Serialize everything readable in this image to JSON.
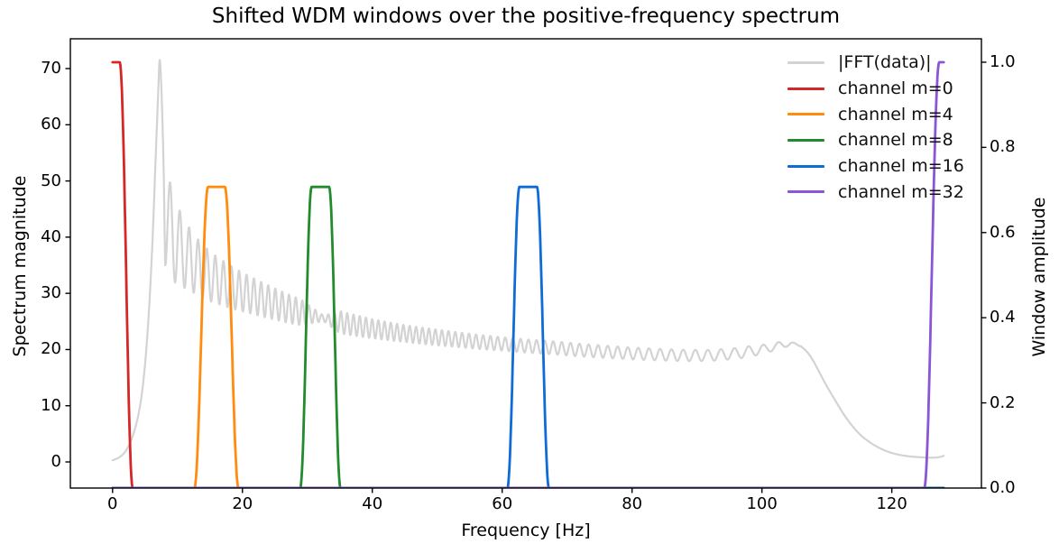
{
  "chart_data": {
    "type": "line",
    "title": "Shifted WDM windows over the positive-frequency spectrum",
    "xlabel": "Frequency [Hz]",
    "ylabel_left": "Spectrum magnitude",
    "ylabel_right": "Window amplitude",
    "xlim": [
      -6.5,
      133.8
    ],
    "ylim_left": [
      -4.65,
      75.3
    ],
    "ylim_right": [
      0.0,
      1.055
    ],
    "xticks": [
      0,
      20,
      40,
      60,
      80,
      100,
      120
    ],
    "yticks_left": [
      0,
      10,
      20,
      30,
      40,
      50,
      60,
      70
    ],
    "yticks_right": [
      "0.0",
      "0.2",
      "0.4",
      "0.6",
      "0.8",
      "1.0"
    ],
    "grid": false,
    "legend": {
      "position": "upper right",
      "frame": false,
      "entries": [
        {
          "label": "|FFT(data)|",
          "color": "#d3d3d3"
        },
        {
          "label": "channel m=0",
          "color": "#d62728"
        },
        {
          "label": "channel m=4",
          "color": "#ff8c0e"
        },
        {
          "label": "channel m=8",
          "color": "#228b2e"
        },
        {
          "label": "channel m=16",
          "color": "#0f6bd7"
        },
        {
          "label": "channel m=32",
          "color": "#8a55d6"
        }
      ]
    },
    "series": {
      "fft": {
        "name": "|FFT(data)|",
        "color": "#d3d3d3",
        "axis": "left",
        "peak": {
          "f": 7.25,
          "value": 71.5
        },
        "main_lobe_points": [
          [
            0,
            0.3
          ],
          [
            1,
            0.8
          ],
          [
            2,
            1.9
          ],
          [
            3,
            4.3
          ],
          [
            4,
            8.5
          ],
          [
            4.8,
            15
          ],
          [
            5.5,
            25
          ],
          [
            6.1,
            38
          ],
          [
            6.6,
            53
          ],
          [
            7.0,
            65
          ],
          [
            7.25,
            71.5
          ],
          [
            7.5,
            67
          ],
          [
            7.7,
            60
          ],
          [
            7.9,
            50
          ],
          [
            8.0,
            42
          ],
          [
            8.1,
            35.2
          ]
        ],
        "ripple_region": {
          "f_start": 8.1,
          "f_end": 106,
          "start_phase_deg": -90,
          "trend_points": [
            [
              8.1,
              44
            ],
            [
              9.5,
              39.5
            ],
            [
              11,
              37
            ],
            [
              13,
              34.8
            ],
            [
              15,
              33
            ],
            [
              17,
              31.8
            ],
            [
              19,
              30.7
            ],
            [
              21,
              29.8
            ],
            [
              24,
              28.5
            ],
            [
              27,
              27.3
            ],
            [
              30,
              26.3
            ],
            [
              33,
              25.4
            ],
            [
              36,
              24.6
            ],
            [
              40,
              23.7
            ],
            [
              44,
              23.0
            ],
            [
              48,
              22.4
            ],
            [
              52,
              21.9
            ],
            [
              56,
              21.4
            ],
            [
              60,
              21.0
            ],
            [
              64,
              20.6
            ],
            [
              68,
              20.3
            ],
            [
              72,
              19.9
            ],
            [
              76,
              19.6
            ],
            [
              80,
              19.3
            ],
            [
              84,
              19.1
            ],
            [
              88,
              18.95
            ],
            [
              92,
              18.95
            ],
            [
              96,
              19.3
            ],
            [
              100,
              20.0
            ],
            [
              103,
              20.8
            ],
            [
              104.5,
              21.1
            ],
            [
              106,
              20.6
            ]
          ],
          "amp_points": [
            [
              8.1,
              9
            ],
            [
              9.5,
              7.5
            ],
            [
              11,
              6
            ],
            [
              13,
              5
            ],
            [
              15,
              4.4
            ],
            [
              18,
              3.8
            ],
            [
              21,
              3.3
            ],
            [
              25,
              2.8
            ],
            [
              29,
              2.3
            ],
            [
              32.5,
              0.5
            ],
            [
              35,
              2.0
            ],
            [
              40,
              1.7
            ],
            [
              45,
              1.5
            ],
            [
              50,
              1.4
            ],
            [
              55,
              1.3
            ],
            [
              60,
              1.2
            ],
            [
              70,
              1.15
            ],
            [
              80,
              1.05
            ],
            [
              90,
              1.0
            ],
            [
              98,
              0.95
            ],
            [
              103,
              0.6
            ],
            [
              106,
              0.05
            ]
          ],
          "period_points": [
            [
              8.1,
              1.55
            ],
            [
              12,
              1.4
            ],
            [
              20,
              1.15
            ],
            [
              30,
              1.0
            ],
            [
              40,
              0.95
            ],
            [
              50,
              1.0
            ],
            [
              60,
              1.15
            ],
            [
              70,
              1.35
            ],
            [
              80,
              1.6
            ],
            [
              90,
              1.9
            ],
            [
              100,
              2.3
            ],
            [
              106,
              2.5
            ]
          ]
        },
        "tail_points": [
          [
            106,
            20.6
          ],
          [
            107,
            19.5
          ],
          [
            108,
            17.8
          ],
          [
            109.5,
            14.5
          ],
          [
            111,
            11.5
          ],
          [
            113,
            7.8
          ],
          [
            115,
            5.0
          ],
          [
            117,
            3.2
          ],
          [
            119,
            2.0
          ],
          [
            121,
            1.3
          ],
          [
            123,
            0.95
          ],
          [
            125,
            0.8
          ],
          [
            126.5,
            0.75
          ],
          [
            127.5,
            0.9
          ],
          [
            128,
            1.1
          ]
        ]
      },
      "windows": [
        {
          "name": "channel m=0",
          "color": "#d62728",
          "axis": "right",
          "center": 0,
          "flat_halfwidth": 1.1,
          "base_halfwidth": 3.1,
          "peak": 1.0,
          "f_range": [
            0,
            128
          ]
        },
        {
          "name": "channel m=4",
          "color": "#ff8c0e",
          "axis": "right",
          "center": 16,
          "flat_halfwidth": 1.3,
          "base_halfwidth": 3.4,
          "peak": 0.7071,
          "f_range": [
            0,
            128
          ]
        },
        {
          "name": "channel m=8",
          "color": "#228b2e",
          "axis": "right",
          "center": 32,
          "flat_halfwidth": 1.35,
          "base_halfwidth": 3.1,
          "peak": 0.7071,
          "f_range": [
            0,
            128
          ]
        },
        {
          "name": "channel m=16",
          "color": "#0f6bd7",
          "axis": "right",
          "center": 64,
          "flat_halfwidth": 1.35,
          "base_halfwidth": 3.2,
          "peak": 0.7071,
          "f_range": [
            0,
            128
          ]
        },
        {
          "name": "channel m=32",
          "color": "#8a55d6",
          "axis": "right",
          "center": 128,
          "flat_halfwidth": 0.7,
          "base_halfwidth": 3.0,
          "peak": 1.0,
          "f_range": [
            0,
            128
          ]
        }
      ]
    }
  }
}
